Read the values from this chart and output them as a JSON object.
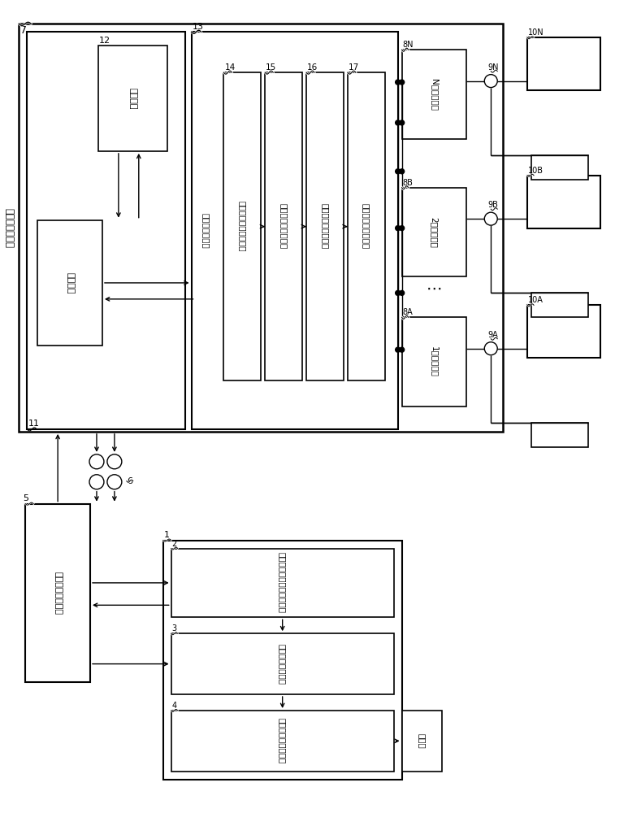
{
  "bg_color": "#ffffff",
  "lc": "#000000",
  "fig_width": 7.89,
  "fig_height": 10.0,
  "labels": {
    "7": "7",
    "11": "11",
    "12": "12",
    "13": "13",
    "14": "14",
    "15": "15",
    "16": "16",
    "17": "17",
    "8A": "8A",
    "8B": "8B",
    "8N": "8N",
    "9A": "9A",
    "9B": "9B",
    "9N": "9N",
    "10A": "10A",
    "10B": "10B",
    "10N": "10N",
    "1": "1",
    "2": "2",
    "3": "3",
    "4": "4",
    "5": "5",
    "6": "6",
    "qun": "群管理控制系统",
    "zhineng": "智能系统",
    "xuexi": "学习系统",
    "yunxing": "运行管理控制部",
    "mudi14": "目的地楼层登录处理部",
    "baoyang15": "保养运行识别处理部",
    "baoyang16": "保养功能限制处理部",
    "baoyang17": "保养运行指令处理部",
    "elev1": "1号电梯控制",
    "elev2": "2号电梯控制",
    "elevN": "N号电梯控制",
    "io": "输入输出控制系统",
    "hall": "电梯门厅目的地楼层输入部",
    "dest": "目的地楼层输入部",
    "maint": "保养运行指令输入部",
    "report": "报告部"
  }
}
